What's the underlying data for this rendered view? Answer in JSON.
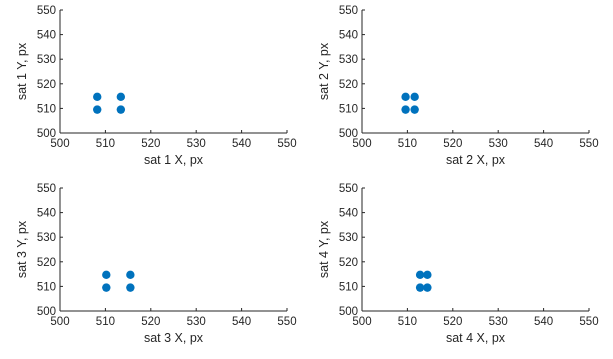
{
  "chart_data": [
    {
      "type": "scatter",
      "xlabel": "sat 1 X, px",
      "ylabel": "sat 1 Y, px",
      "xlim": [
        500,
        550
      ],
      "ylim": [
        500,
        550
      ],
      "xticks": [
        500,
        510,
        520,
        530,
        540,
        550
      ],
      "yticks": [
        500,
        510,
        520,
        530,
        540,
        550
      ],
      "grid": false,
      "marker_color": "#0072BD",
      "points": [
        {
          "x": 508.2,
          "y": 514.7
        },
        {
          "x": 513.4,
          "y": 514.7
        },
        {
          "x": 508.2,
          "y": 509.5
        },
        {
          "x": 513.4,
          "y": 509.5
        }
      ]
    },
    {
      "type": "scatter",
      "xlabel": "sat 2 X, px",
      "ylabel": "sat 2 Y, px",
      "xlim": [
        500,
        550
      ],
      "ylim": [
        500,
        550
      ],
      "xticks": [
        500,
        510,
        520,
        530,
        540,
        550
      ],
      "yticks": [
        500,
        510,
        520,
        530,
        540,
        550
      ],
      "grid": false,
      "marker_color": "#0072BD",
      "points": [
        {
          "x": 509.6,
          "y": 514.7
        },
        {
          "x": 511.6,
          "y": 514.7
        },
        {
          "x": 509.6,
          "y": 509.5
        },
        {
          "x": 511.6,
          "y": 509.5
        }
      ]
    },
    {
      "type": "scatter",
      "xlabel": "sat 3 X, px",
      "ylabel": "sat 3 Y, px",
      "xlim": [
        500,
        550
      ],
      "ylim": [
        500,
        550
      ],
      "xticks": [
        500,
        510,
        520,
        530,
        540,
        550
      ],
      "yticks": [
        500,
        510,
        520,
        530,
        540,
        550
      ],
      "grid": false,
      "marker_color": "#0072BD",
      "points": [
        {
          "x": 510.2,
          "y": 514.7
        },
        {
          "x": 515.5,
          "y": 514.7
        },
        {
          "x": 510.2,
          "y": 509.5
        },
        {
          "x": 515.5,
          "y": 509.5
        }
      ]
    },
    {
      "type": "scatter",
      "xlabel": "sat 4 X, px",
      "ylabel": "sat 4 Y, px",
      "xlim": [
        500,
        550
      ],
      "ylim": [
        500,
        550
      ],
      "xticks": [
        500,
        510,
        520,
        530,
        540,
        550
      ],
      "yticks": [
        500,
        510,
        520,
        530,
        540,
        550
      ],
      "grid": false,
      "marker_color": "#0072BD",
      "points": [
        {
          "x": 512.8,
          "y": 514.7
        },
        {
          "x": 514.4,
          "y": 514.7
        },
        {
          "x": 512.8,
          "y": 509.5
        },
        {
          "x": 514.4,
          "y": 509.5
        }
      ]
    }
  ]
}
